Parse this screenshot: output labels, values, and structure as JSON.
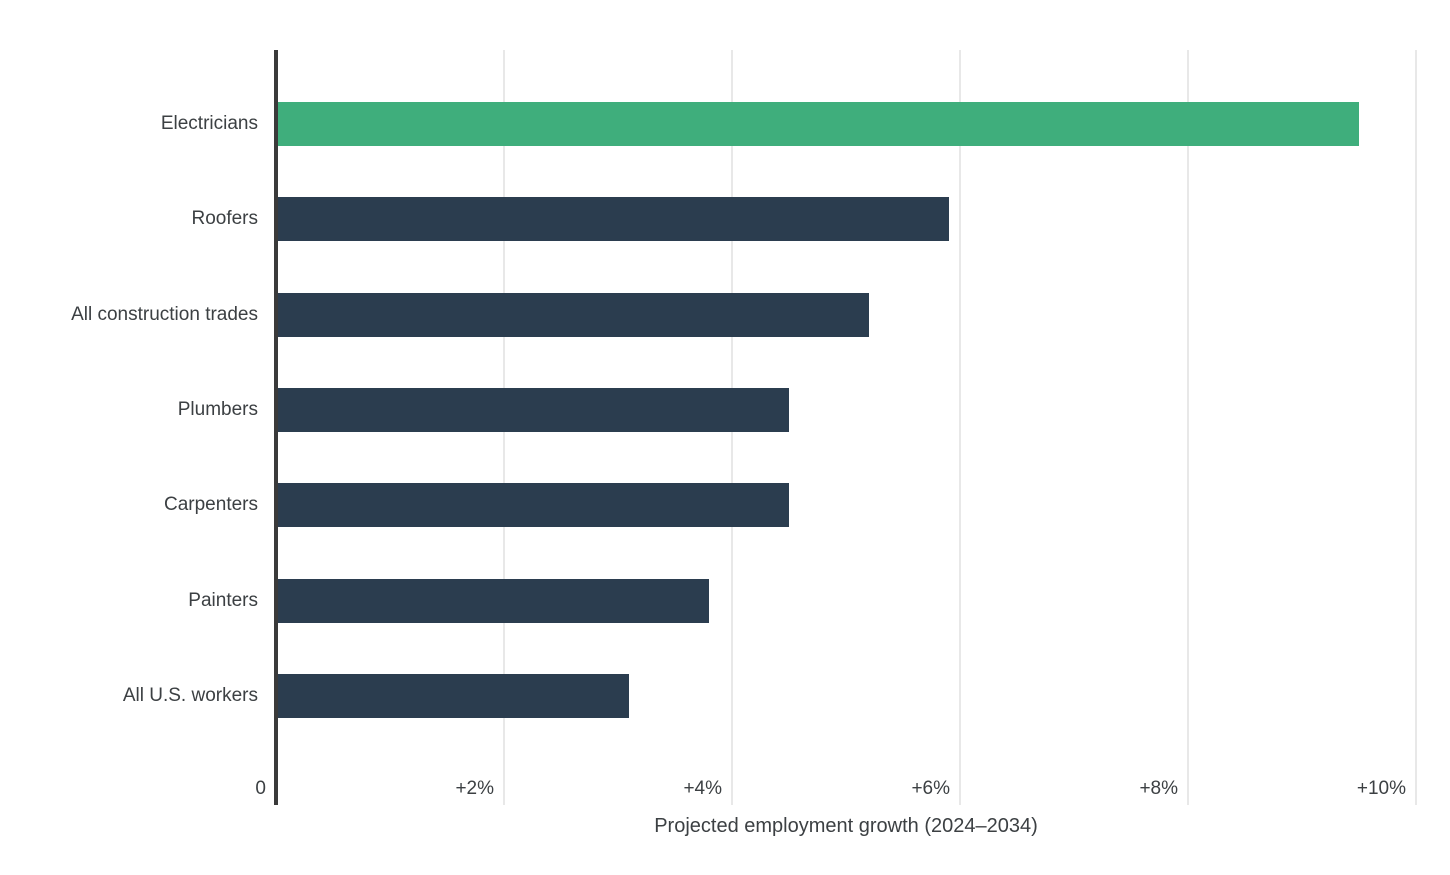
{
  "chart_data": {
    "type": "bar",
    "orientation": "horizontal",
    "title": "",
    "xlabel": "Projected employment growth (2024–2034)",
    "ylabel": "",
    "categories": [
      "Electricians",
      "Roofers",
      "All construction trades",
      "Plumbers",
      "Carpenters",
      "Painters",
      "All U.S. workers"
    ],
    "values": [
      9.5,
      5.9,
      5.2,
      4.5,
      4.5,
      3.8,
      3.1
    ],
    "unit": "percent",
    "xlim": [
      0,
      10
    ],
    "x_ticks": [
      {
        "value": 0,
        "label": "0"
      },
      {
        "value": 2,
        "label": "+2%"
      },
      {
        "value": 4,
        "label": "+4%"
      },
      {
        "value": 6,
        "label": "+6%"
      },
      {
        "value": 8,
        "label": "+8%"
      },
      {
        "value": 10,
        "label": "+10%"
      }
    ],
    "grid": true,
    "legend": "none",
    "highlight_category": "Electricians",
    "colors": {
      "highlight_bar": "#3fae7c",
      "default_bar": "#2b3d4f",
      "axis_line": "#3a3a3a",
      "gridline": "#e8e8e8",
      "text": "#3c4043",
      "background": "#ffffff"
    }
  }
}
